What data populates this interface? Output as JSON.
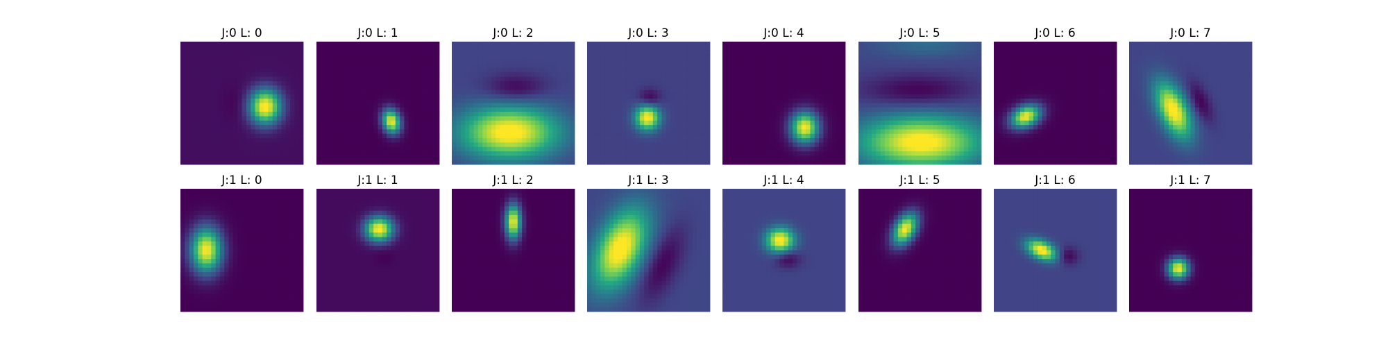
{
  "chart_data": {
    "type": "heatmap",
    "colormap": "viridis",
    "colormap_stops": [
      "#440154",
      "#414487",
      "#2a788e",
      "#22a884",
      "#7ad151",
      "#fde725"
    ],
    "grid": false,
    "axes_visible": false,
    "layout": {
      "rows": 2,
      "columns": 8
    },
    "panels": [
      {
        "title": "J:0 L: 0",
        "background": 0.04,
        "blobs": [
          {
            "x": 0.69,
            "y": 0.53,
            "sx": 0.09,
            "sy": 0.1,
            "angle": 0,
            "amp": 1.0
          },
          {
            "x": 0.45,
            "y": 0.5,
            "sx": 0.07,
            "sy": 0.1,
            "angle": 0,
            "amp": -0.04
          }
        ]
      },
      {
        "title": "J:0 L: 1",
        "background": 0.0,
        "blobs": [
          {
            "x": 0.61,
            "y": 0.65,
            "sx": 0.05,
            "sy": 0.07,
            "angle": -15,
            "amp": 1.0
          }
        ]
      },
      {
        "title": "J:0 L: 2",
        "background": 0.2,
        "blobs": [
          {
            "x": 0.47,
            "y": 0.74,
            "sx": 0.28,
            "sy": 0.15,
            "angle": 0,
            "amp": 0.85
          },
          {
            "x": 0.52,
            "y": 0.38,
            "sx": 0.17,
            "sy": 0.08,
            "angle": 0,
            "amp": -0.2
          }
        ]
      },
      {
        "title": "J:0 L: 3",
        "background": 0.19,
        "blobs": [
          {
            "x": 0.49,
            "y": 0.62,
            "sx": 0.07,
            "sy": 0.07,
            "angle": 0,
            "amp": 0.85
          },
          {
            "x": 0.51,
            "y": 0.46,
            "sx": 0.06,
            "sy": 0.05,
            "angle": 0,
            "amp": -0.19
          }
        ]
      },
      {
        "title": "J:0 L: 4",
        "background": 0.0,
        "blobs": [
          {
            "x": 0.67,
            "y": 0.7,
            "sx": 0.08,
            "sy": 0.09,
            "angle": 0,
            "amp": 1.0
          }
        ]
      },
      {
        "title": "J:0 L: 5",
        "background": 0.2,
        "blobs": [
          {
            "x": 0.51,
            "y": 0.82,
            "sx": 0.35,
            "sy": 0.15,
            "angle": 0,
            "amp": 0.85
          },
          {
            "x": 0.48,
            "y": 0.4,
            "sx": 0.3,
            "sy": 0.09,
            "angle": 0,
            "amp": -0.2
          },
          {
            "x": 0.55,
            "y": 0.02,
            "sx": 0.3,
            "sy": 0.08,
            "angle": 0,
            "amp": 0.15
          }
        ]
      },
      {
        "title": "J:0 L: 6",
        "background": 0.0,
        "blobs": [
          {
            "x": 0.26,
            "y": 0.61,
            "sx": 0.09,
            "sy": 0.06,
            "angle": -25,
            "amp": 1.0
          }
        ]
      },
      {
        "title": "J:0 L: 7",
        "background": 0.2,
        "blobs": [
          {
            "x": 0.36,
            "y": 0.56,
            "sx": 0.08,
            "sy": 0.17,
            "angle": -25,
            "amp": 0.85
          },
          {
            "x": 0.58,
            "y": 0.49,
            "sx": 0.05,
            "sy": 0.12,
            "angle": -25,
            "amp": -0.2
          }
        ]
      },
      {
        "title": "J:1 L: 0",
        "background": 0.0,
        "blobs": [
          {
            "x": 0.21,
            "y": 0.5,
            "sx": 0.09,
            "sy": 0.13,
            "angle": 0,
            "amp": 1.0
          }
        ]
      },
      {
        "title": "J:1 L: 1",
        "background": 0.03,
        "blobs": [
          {
            "x": 0.51,
            "y": 0.33,
            "sx": 0.08,
            "sy": 0.07,
            "angle": 0,
            "amp": 1.0
          },
          {
            "x": 0.55,
            "y": 0.55,
            "sx": 0.06,
            "sy": 0.05,
            "angle": 0,
            "amp": -0.03
          }
        ]
      },
      {
        "title": "J:1 L: 2",
        "background": 0.0,
        "blobs": [
          {
            "x": 0.5,
            "y": 0.27,
            "sx": 0.045,
            "sy": 0.1,
            "angle": 0,
            "amp": 1.0
          }
        ]
      },
      {
        "title": "J:1 L: 3",
        "background": 0.21,
        "blobs": [
          {
            "x": 0.27,
            "y": 0.49,
            "sx": 0.13,
            "sy": 0.24,
            "angle": 25,
            "amp": 0.85
          },
          {
            "x": 0.61,
            "y": 0.62,
            "sx": 0.09,
            "sy": 0.22,
            "angle": 25,
            "amp": -0.21
          }
        ]
      },
      {
        "title": "J:1 L: 4",
        "background": 0.2,
        "blobs": [
          {
            "x": 0.47,
            "y": 0.42,
            "sx": 0.08,
            "sy": 0.07,
            "angle": 0,
            "amp": 0.85
          },
          {
            "x": 0.53,
            "y": 0.57,
            "sx": 0.07,
            "sy": 0.05,
            "angle": 0,
            "amp": -0.2
          }
        ]
      },
      {
        "title": "J:1 L: 5",
        "background": 0.0,
        "blobs": [
          {
            "x": 0.38,
            "y": 0.33,
            "sx": 0.06,
            "sy": 0.1,
            "angle": 30,
            "amp": 1.0
          }
        ]
      },
      {
        "title": "J:1 L: 6",
        "background": 0.2,
        "blobs": [
          {
            "x": 0.39,
            "y": 0.5,
            "sx": 0.09,
            "sy": 0.05,
            "angle": 25,
            "amp": 0.85
          },
          {
            "x": 0.6,
            "y": 0.55,
            "sx": 0.06,
            "sy": 0.05,
            "angle": 0,
            "amp": -0.2
          }
        ]
      },
      {
        "title": "J:1 L: 7",
        "background": 0.0,
        "blobs": [
          {
            "x": 0.4,
            "y": 0.65,
            "sx": 0.06,
            "sy": 0.06,
            "angle": 0,
            "amp": 1.0
          }
        ]
      }
    ]
  }
}
